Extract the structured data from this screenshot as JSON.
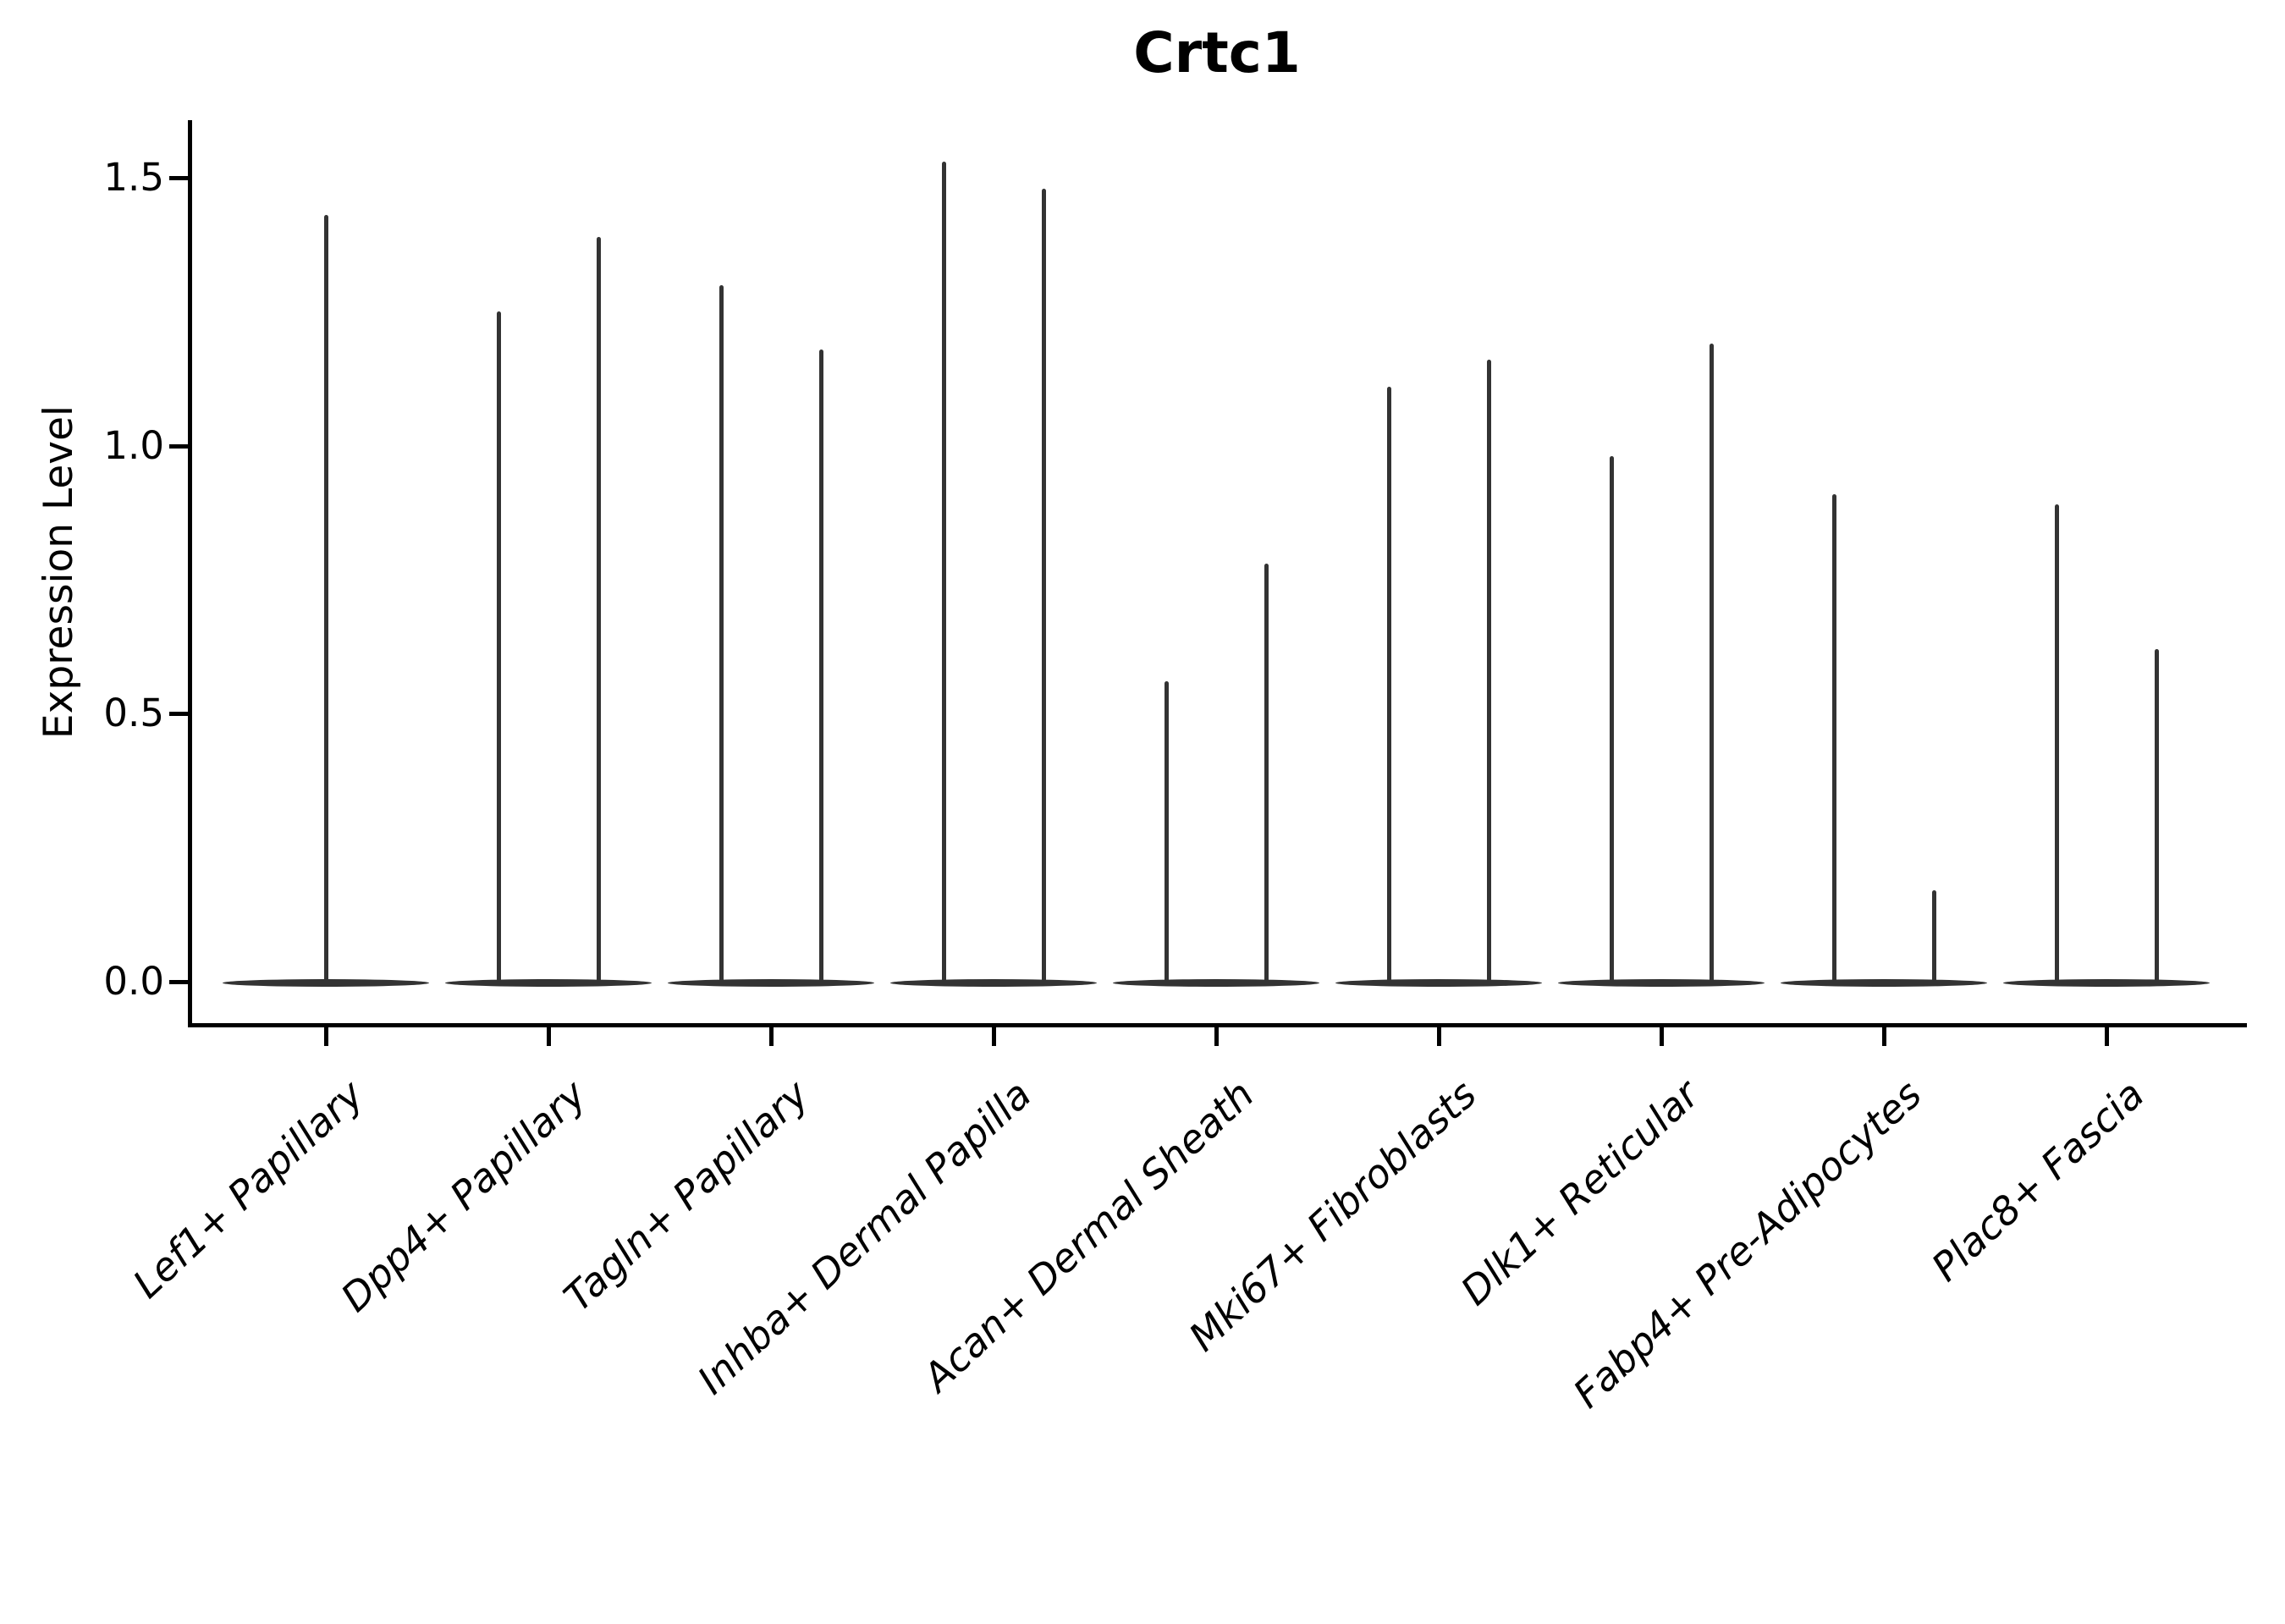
{
  "figure": {
    "title": "Crtc1",
    "background": "#ffffff"
  },
  "chart_data": {
    "type": "violin",
    "title": "Crtc1",
    "xlabel": "",
    "ylabel": "Expression Level",
    "ytick_labels": [
      "0.0",
      "0.5",
      "1.0",
      "1.5"
    ],
    "ytick_values": [
      0.0,
      0.5,
      1.0,
      1.5
    ],
    "ylim": [
      -0.08,
      1.61
    ],
    "grid": false,
    "legend": "none",
    "violin_style": "flat bulge of zero-expression cells at 0 with a thin vertical spike reaching the maximum expression; categories with two spikes contain two side-by-side (dodged) violins",
    "violins": [
      {
        "category": "Lef1+ Papillary",
        "n_violins": 1,
        "peak_expression": [
          1.43
        ]
      },
      {
        "category": "Dpp4+ Papillary",
        "n_violins": 2,
        "peak_expression": [
          1.25,
          1.39
        ]
      },
      {
        "category": "Tagln+ Papillary",
        "n_violins": 2,
        "peak_expression": [
          1.3,
          1.18
        ]
      },
      {
        "category": "Inhba+ Dermal Papilla",
        "n_violins": 2,
        "peak_expression": [
          1.53,
          1.48
        ]
      },
      {
        "category": "Acan+ Dermal Sheath",
        "n_violins": 2,
        "peak_expression": [
          0.56,
          0.78
        ]
      },
      {
        "category": "Mki67+ Fibroblasts",
        "n_violins": 2,
        "peak_expression": [
          1.11,
          1.16
        ]
      },
      {
        "category": "Dlk1+ Reticular",
        "n_violins": 2,
        "peak_expression": [
          0.98,
          1.19
        ]
      },
      {
        "category": "Fabp4+ Pre-Adipocytes",
        "n_violins": 2,
        "peak_expression": [
          0.91,
          0.17
        ]
      },
      {
        "category": "Plac8+ Fascia",
        "n_violins": 2,
        "peak_expression": [
          0.89,
          0.62
        ]
      }
    ],
    "colors": {
      "violin": "#333333",
      "axis": "#000000",
      "text": "#000000",
      "background": "#ffffff"
    }
  }
}
